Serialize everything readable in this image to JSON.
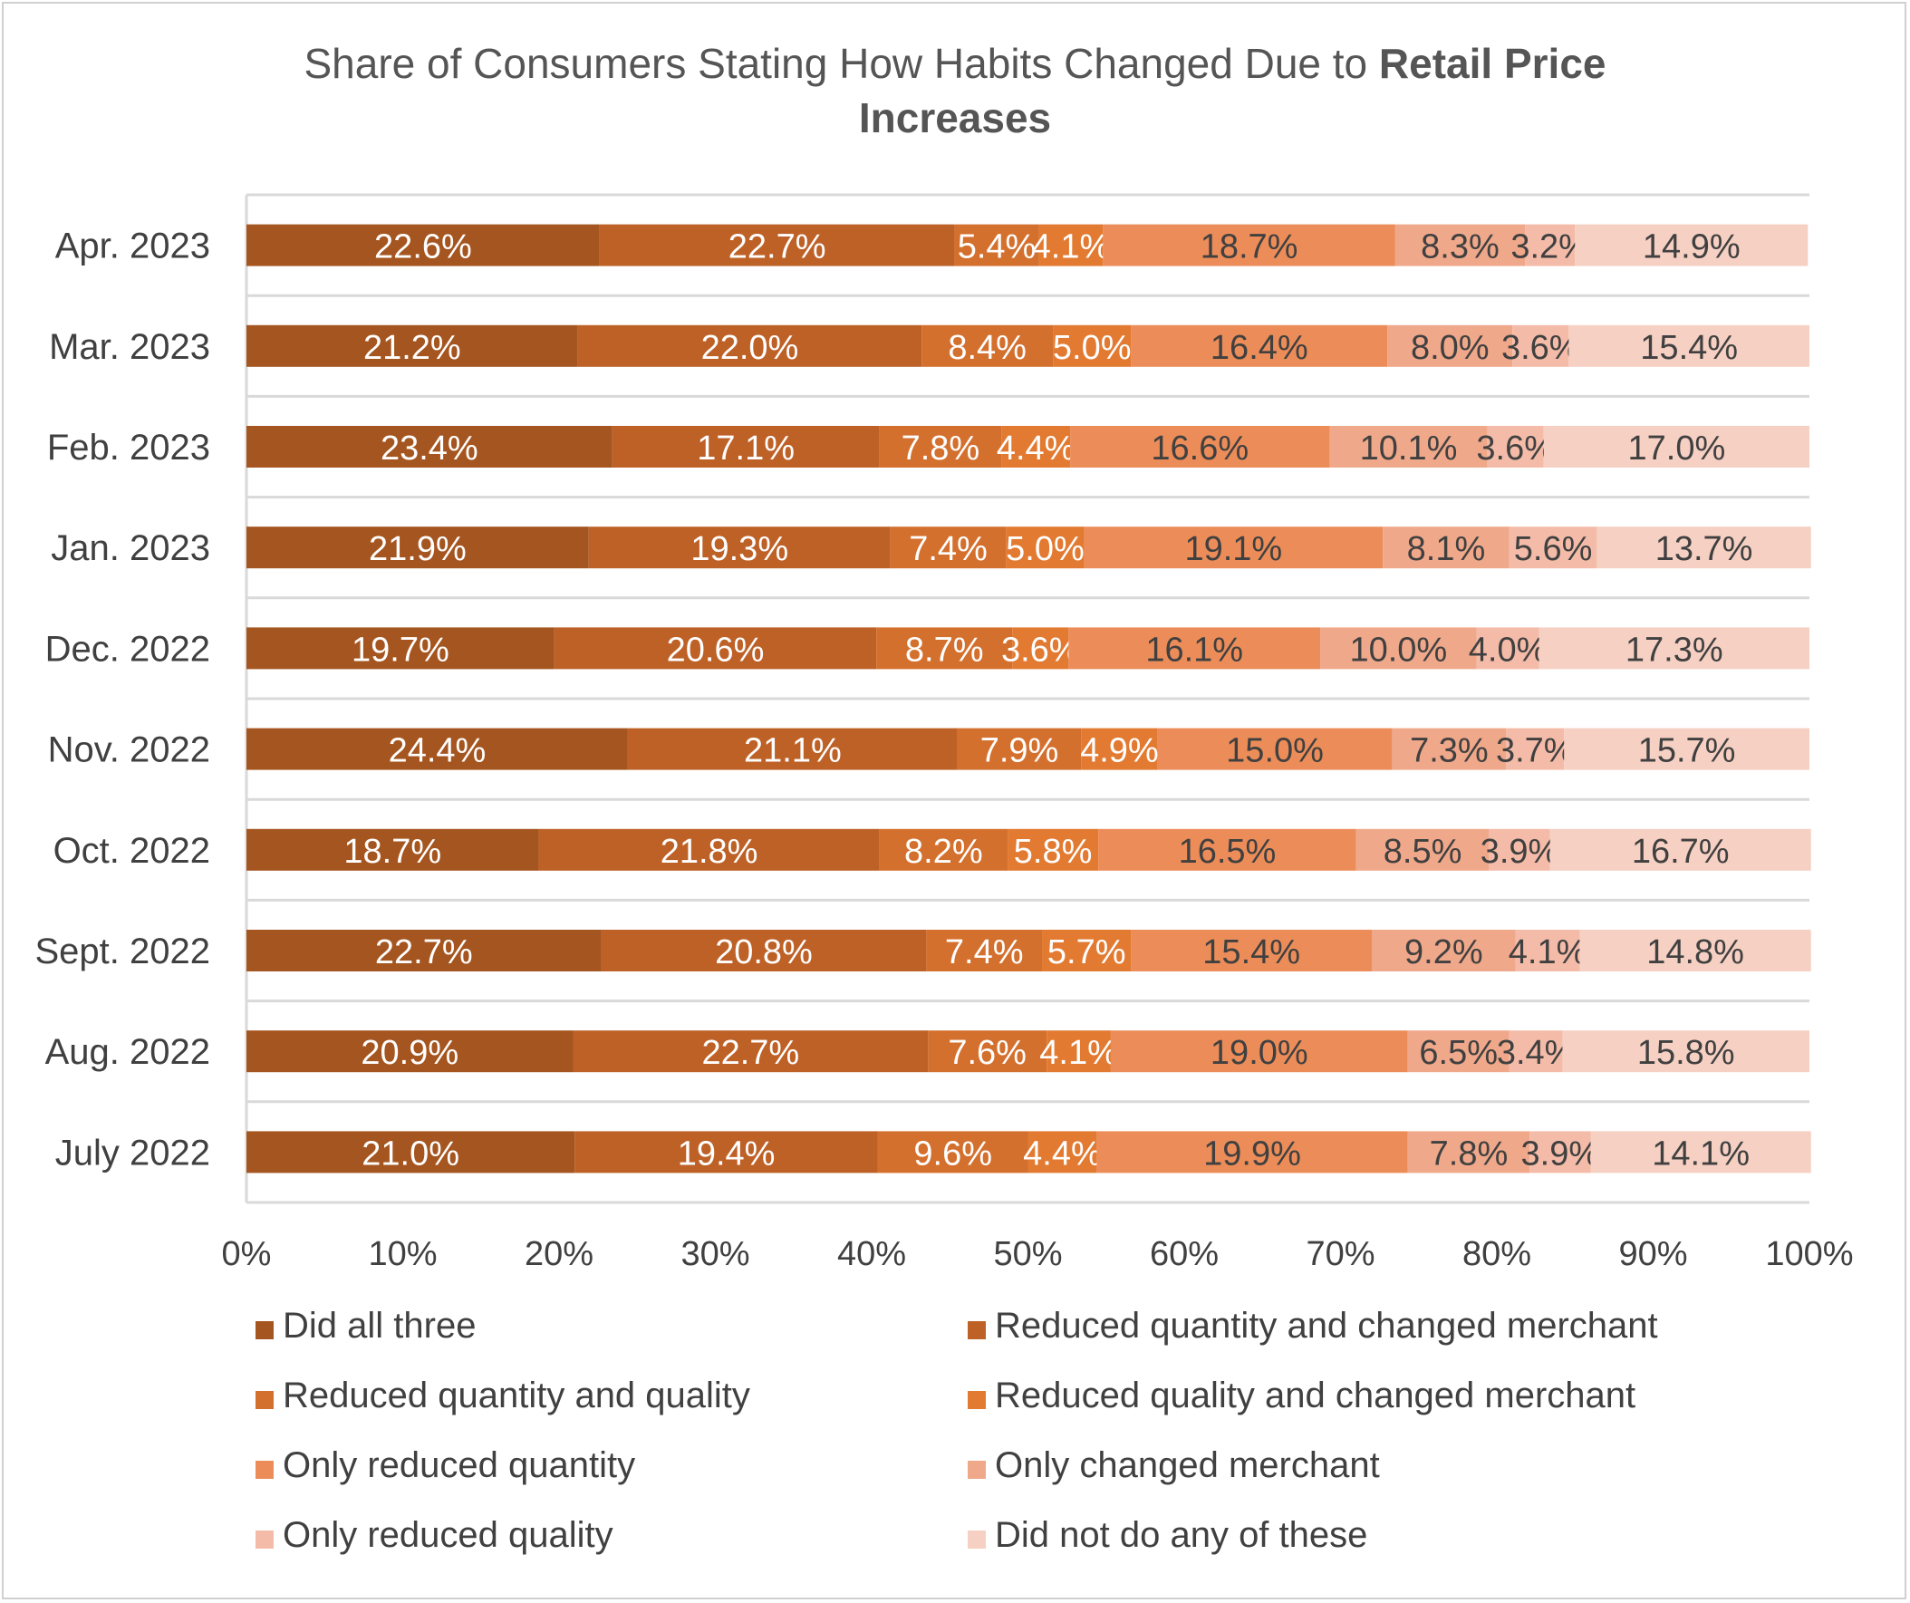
{
  "chart_data": {
    "type": "bar",
    "orientation": "horizontal",
    "stacked": "100%",
    "title": "Share of Consumers Stating How Habits Changed Due to Retail Price Increases",
    "title_parts": {
      "line1_normal": "Share of Consumers Stating How Habits Changed Due to ",
      "line1_bold": "Retail Price",
      "line2_bold": "Increases"
    },
    "categories": [
      "Apr. 2023",
      "Mar. 2023",
      "Feb. 2023",
      "Jan. 2023",
      "Dec. 2022",
      "Nov. 2022",
      "Oct. 2022",
      "Sept. 2022",
      "Aug. 2022",
      "July 2022"
    ],
    "xlim": [
      0,
      100
    ],
    "xticks": [
      "0%",
      "10%",
      "20%",
      "30%",
      "40%",
      "50%",
      "60%",
      "70%",
      "80%",
      "90%",
      "100%"
    ],
    "grid": "horizontal separators",
    "legend_position": "bottom",
    "series": [
      {
        "name": "Did all three",
        "color": "#A5551F",
        "label_color": "#ffffff",
        "values": [
          22.6,
          21.2,
          23.4,
          21.9,
          19.7,
          24.4,
          18.7,
          22.7,
          20.9,
          21.0
        ]
      },
      {
        "name": "Reduced quantity and changed merchant",
        "color": "#BE6127",
        "label_color": "#ffffff",
        "values": [
          22.7,
          22.0,
          17.1,
          19.3,
          20.6,
          21.1,
          21.8,
          20.8,
          22.7,
          19.4
        ]
      },
      {
        "name": "Reduced quantity and quality",
        "color": "#D4702E",
        "label_color": "#ffffff",
        "values": [
          5.4,
          8.4,
          7.8,
          7.4,
          8.7,
          7.9,
          8.2,
          7.4,
          7.6,
          9.6
        ]
      },
      {
        "name": "Reduced quality and changed merchant",
        "color": "#E27A31",
        "label_color": "#ffffff",
        "values": [
          4.1,
          5.0,
          4.4,
          5.0,
          3.6,
          4.9,
          5.8,
          5.7,
          4.1,
          4.4
        ]
      },
      {
        "name": "Only reduced quantity",
        "color": "#EC8D59",
        "label_color": "#404040",
        "values": [
          18.7,
          16.4,
          16.6,
          19.1,
          16.1,
          15.0,
          16.5,
          15.4,
          19.0,
          19.9
        ]
      },
      {
        "name": "Only changed merchant",
        "color": "#F0A88A",
        "label_color": "#404040",
        "values": [
          8.3,
          8.0,
          10.1,
          8.1,
          10.0,
          7.3,
          8.5,
          9.2,
          6.5,
          7.8
        ]
      },
      {
        "name": "Only reduced quality",
        "color": "#F4BCA8",
        "label_color": "#404040",
        "values": [
          3.2,
          3.6,
          3.6,
          5.6,
          4.0,
          3.7,
          3.9,
          4.1,
          3.4,
          3.9
        ]
      },
      {
        "name": "Did not do any of these",
        "color": "#F6D0C3",
        "label_color": "#404040",
        "values": [
          14.9,
          15.4,
          17.0,
          13.7,
          17.3,
          15.7,
          16.7,
          14.8,
          15.8,
          14.1
        ]
      }
    ]
  }
}
